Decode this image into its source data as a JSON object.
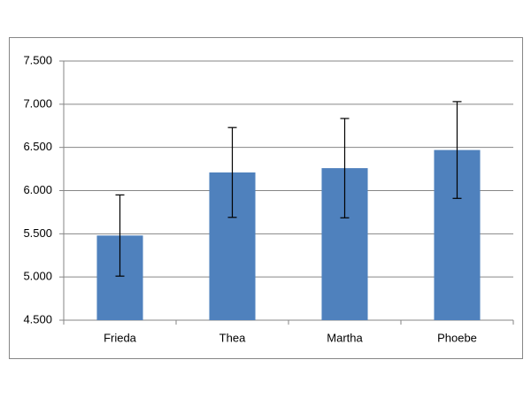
{
  "chart_data": {
    "type": "bar",
    "categories": [
      "Frieda",
      "Thea",
      "Martha",
      "Phoebe"
    ],
    "values": [
      5.48,
      6.21,
      6.26,
      6.47
    ],
    "errors": [
      0.47,
      0.52,
      0.575,
      0.56
    ],
    "color": "#4f81bd",
    "ylim": [
      4.5,
      7.5
    ],
    "yticks": [
      {
        "value": 4.5,
        "label": "4.500"
      },
      {
        "value": 5,
        "label": "5.000"
      },
      {
        "value": 5.5,
        "label": "5.500"
      },
      {
        "value": 6,
        "label": "6.000"
      },
      {
        "value": 6.5,
        "label": "6.500"
      },
      {
        "value": 7,
        "label": "7.000"
      },
      {
        "value": 7.5,
        "label": "7.500"
      }
    ],
    "grid": true
  }
}
